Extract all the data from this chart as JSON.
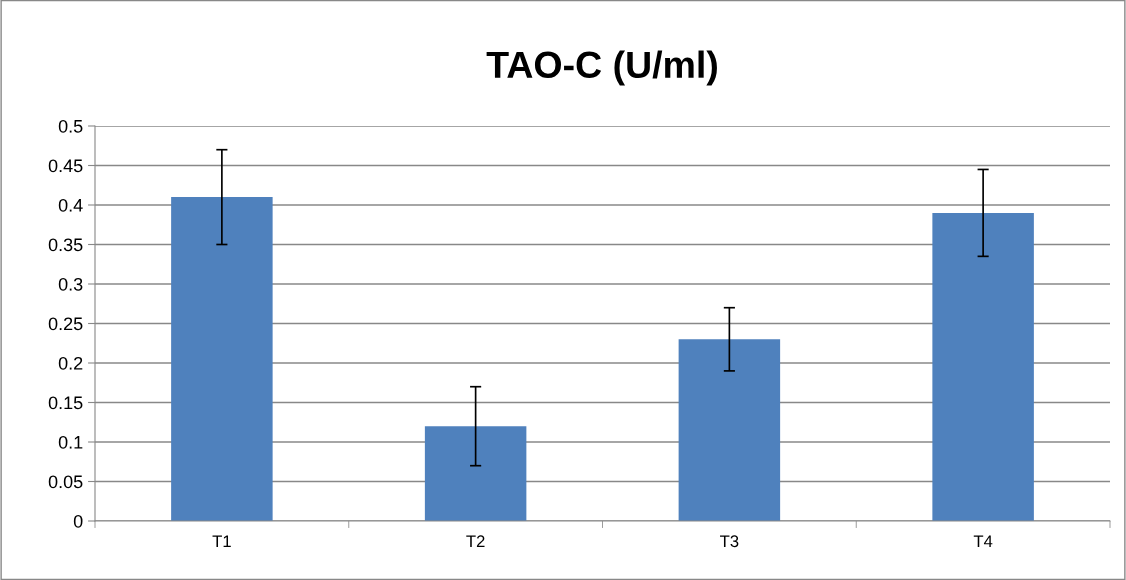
{
  "chart_data": {
    "type": "bar",
    "title": "TAO-C (U/ml)",
    "categories": [
      "T1",
      "T2",
      "T3",
      "T4"
    ],
    "values": [
      0.41,
      0.12,
      0.23,
      0.39
    ],
    "errors": [
      0.06,
      0.05,
      0.04,
      0.055
    ],
    "color": "#4f81bd",
    "ylim": [
      0,
      0.5
    ],
    "yticks": [
      0,
      0.05,
      0.1,
      0.15,
      0.2,
      0.25,
      0.3,
      0.35,
      0.4,
      0.45,
      0.5
    ],
    "grid": "y"
  }
}
